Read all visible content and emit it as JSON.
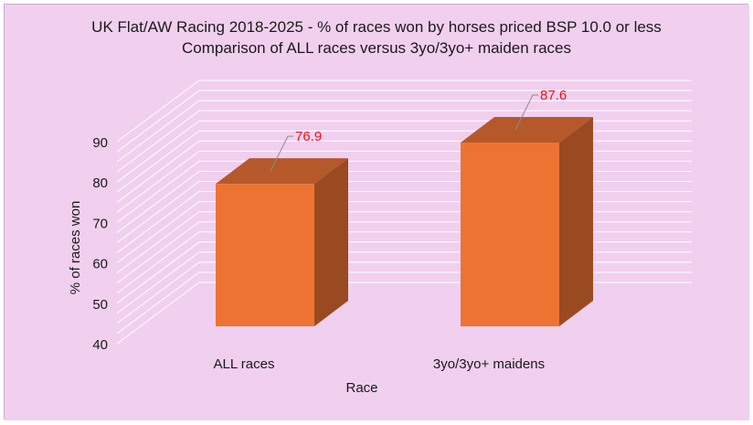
{
  "chart_data": {
    "type": "bar",
    "title": "UK Flat/AW Racing 2018-2025 - % of races won by horses priced BSP 10.0 or less",
    "subtitle": "Comparison of ALL races versus 3yo/3yo+ maiden races",
    "categories": [
      "ALL races",
      "3yo/3yo+ maidens"
    ],
    "values": [
      76.9,
      87.6
    ],
    "data_labels": [
      "76.9",
      "87.6"
    ],
    "xlabel": "Race",
    "ylabel": "% of races won",
    "ylim": [
      40,
      90
    ],
    "yticks": [
      "40",
      "50",
      "60",
      "70",
      "80",
      "90"
    ],
    "style": "3d-column",
    "grid": true,
    "legend": "none",
    "colors": {
      "background": "#f0d0ee",
      "bar_front": "#ed7333",
      "bar_top": "#b5592b",
      "bar_side": "#9a4a20",
      "gridline": "#ffffff",
      "data_label": "#e8141c",
      "leader_line": "#8c8c8c"
    }
  }
}
